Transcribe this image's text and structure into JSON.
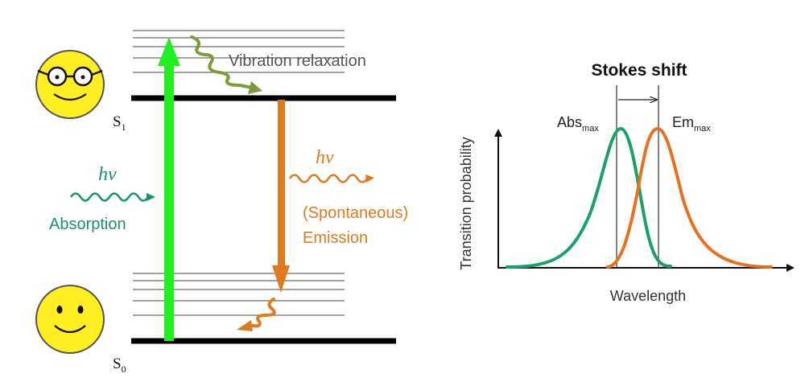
{
  "diagram": {
    "vibration_relaxation": "Vibration relaxation",
    "state_s1": {
      "letter": "S",
      "index": "1"
    },
    "state_s0": {
      "letter": "S",
      "index": "0"
    },
    "absorption": {
      "photon": "hν",
      "label": "Absorption"
    },
    "emission": {
      "photon": "hν",
      "line1": "(Spontaneous)",
      "line2": "Emission"
    },
    "colors": {
      "absorption_arrow": "#22ee22",
      "absorption_text": "#1a9070",
      "emission": "#e07a1f",
      "relaxation": "#7f9a3a",
      "face_fill": "#ffee22"
    },
    "icons": [
      "smiley-with-glasses-icon",
      "smiley-icon"
    ]
  },
  "spectrum": {
    "title": "Stokes shift",
    "abs_label": {
      "main": "Abs",
      "sub": "max"
    },
    "em_label": {
      "main": "Em",
      "sub": "max"
    },
    "xlabel": "Wavelength",
    "ylabel": "Transition probability",
    "colors": {
      "absorption": "#1aa06a",
      "emission": "#e8701f"
    }
  }
}
